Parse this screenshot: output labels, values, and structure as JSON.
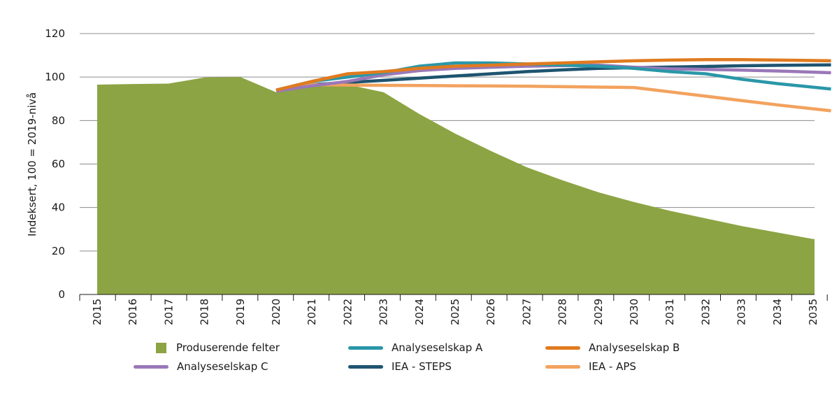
{
  "chart_data": {
    "type": "area",
    "xlabel": "",
    "ylabel": "Indeksert, 100 = 2019-nivå",
    "ylim": [
      0,
      120
    ],
    "yticks": [
      "0",
      "20",
      "40",
      "60",
      "80",
      "100",
      "120"
    ],
    "categories": [
      "2015",
      "2016",
      "2017",
      "2018",
      "2019",
      "2020",
      "2021",
      "2022",
      "2023",
      "2024",
      "2025",
      "2026",
      "2027",
      "2028",
      "2029",
      "2030",
      "2031",
      "2032",
      "2033",
      "2034",
      "2035"
    ],
    "area_series": {
      "name": "Produserende felter",
      "color": "#8ca443",
      "values": [
        96.5,
        96.8,
        97,
        99.8,
        100,
        93,
        96,
        96.5,
        93,
        83,
        74,
        66,
        58.5,
        52.5,
        47,
        42.5,
        38.5,
        35,
        31.5,
        28.5,
        25.5
      ]
    },
    "series": [
      {
        "name": "Analyseselskap A",
        "color": "#2a97a8",
        "x": [
          2020,
          2021,
          2022,
          2023,
          2024,
          2025,
          2026,
          2027,
          2028,
          2029,
          2030,
          2031,
          2032,
          2033,
          2034,
          2035.5
        ],
        "values": [
          94,
          98,
          100,
          102,
          105,
          106.5,
          106.5,
          106,
          105.5,
          105,
          104,
          102.5,
          101.5,
          99,
          97,
          94.5
        ]
      },
      {
        "name": "Analyseselskap B",
        "color": "#e07b1f",
        "x": [
          2020,
          2021,
          2022,
          2023,
          2024,
          2025,
          2026,
          2027,
          2028,
          2029,
          2030,
          2031,
          2032,
          2033,
          2034,
          2035.5
        ],
        "values": [
          94,
          98,
          101.5,
          102.5,
          104,
          105,
          105.5,
          106,
          106.5,
          107,
          107.5,
          107.8,
          108,
          108,
          107.8,
          107.5
        ]
      },
      {
        "name": "Analyseselskap C",
        "color": "#9a78b8",
        "x": [
          2020,
          2021,
          2022,
          2023,
          2024,
          2025,
          2026,
          2027,
          2028,
          2029,
          2030,
          2031,
          2032,
          2033,
          2034,
          2035.5
        ],
        "values": [
          93.5,
          96,
          98,
          101,
          103,
          104,
          104.5,
          105,
          105.3,
          105.5,
          104.5,
          103.8,
          103.5,
          103.2,
          102.8,
          102
        ]
      },
      {
        "name": "IEA - STEPS",
        "color": "#1e5470",
        "x": [
          2020,
          2021,
          2022,
          2023,
          2024,
          2025,
          2026,
          2027,
          2028,
          2029,
          2030,
          2031,
          2032,
          2033,
          2034,
          2035.5
        ],
        "values": [
          94,
          96.5,
          97.5,
          98.5,
          99.5,
          100.5,
          101.5,
          102.5,
          103.3,
          104,
          104.3,
          104.6,
          104.9,
          105.2,
          105.4,
          105.6
        ]
      },
      {
        "name": "IEA - APS",
        "color": "#f2a25e",
        "x": [
          2020,
          2021,
          2022,
          2023,
          2024,
          2025,
          2026,
          2027,
          2028,
          2029,
          2030,
          2031,
          2032,
          2033,
          2034,
          2035.5
        ],
        "values": [
          94,
          96.5,
          96.3,
          96.2,
          96.1,
          96,
          95.9,
          95.8,
          95.6,
          95.4,
          95.2,
          93.2,
          91.2,
          89.2,
          87.2,
          84.5
        ]
      }
    ],
    "legend_position": "bottom"
  }
}
